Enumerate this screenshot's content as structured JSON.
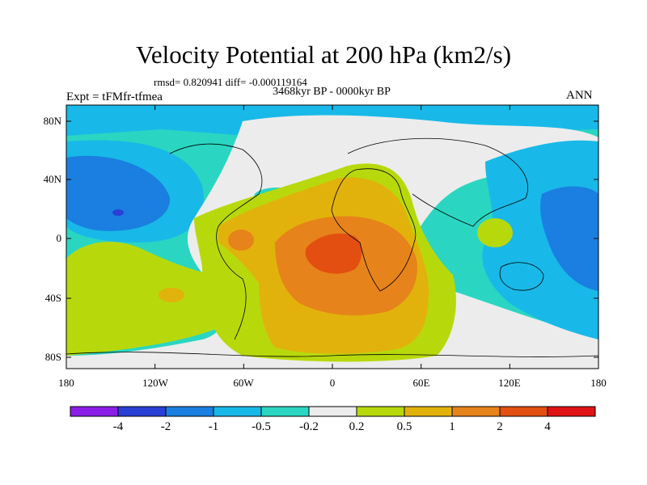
{
  "title": "Velocity Potential at 200 hPa (km2/s)",
  "stats": "rmsd= 0.820941 diff= -0.000119164",
  "period": "3468kyr BP - 0000kyr BP",
  "expt": "Expt = tFMfr-tfmea",
  "season": "ANN",
  "lat_ticks": [
    "80N",
    "40N",
    "0",
    "40S",
    "80S"
  ],
  "lon_ticks": [
    "180",
    "120W",
    "60W",
    "0",
    "60E",
    "120E",
    "180"
  ],
  "colorbar": {
    "labels": [
      "-4",
      "-2",
      "-1",
      "-0.5",
      "-0.2",
      "0.2",
      "0.5",
      "1",
      "2",
      "4"
    ],
    "colors": [
      "#8b1ee6",
      "#2a3fd6",
      "#1a7fe0",
      "#18b9e8",
      "#2ad6c1",
      "#ececec",
      "#b7d90c",
      "#e2b20c",
      "#e6831a",
      "#e24f10",
      "#e01414"
    ]
  },
  "palette": {
    "ocean_base": "#2ad6c1",
    "neg2": "#1a7fe0",
    "neg1": "#18b9e8",
    "neutral": "#ececec",
    "pos1": "#b7d90c",
    "pos2": "#e2b20c",
    "pos3": "#e6831a",
    "pos4": "#e24f10",
    "min": "#2a3fd6"
  }
}
